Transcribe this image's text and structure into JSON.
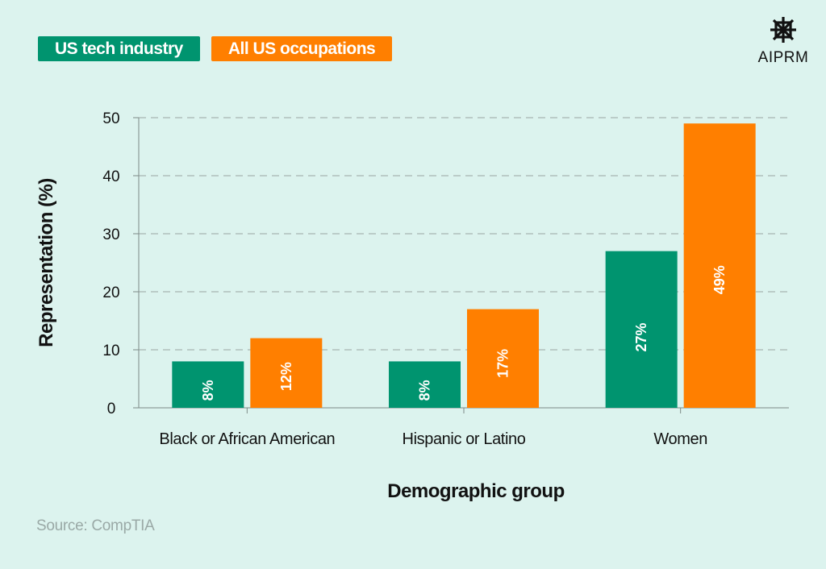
{
  "legend": {
    "series1": "US tech industry",
    "series2": "All US occupations"
  },
  "brand": {
    "name": "AIPRM",
    "icon": "aiprm-logo-icon"
  },
  "source": "Source: CompTIA",
  "colors": {
    "series1": "#00946f",
    "series2": "#ff7f00",
    "background": "#dcf3ee",
    "axis": "#7d8a87",
    "grid": "#9aa6a3"
  },
  "chart_data": {
    "type": "bar",
    "categories": [
      "Black or African American",
      "Hispanic or Latino",
      "Women"
    ],
    "series": [
      {
        "name": "US tech industry",
        "values": [
          8,
          8,
          27
        ],
        "labels": [
          "8%",
          "8%",
          "27%"
        ]
      },
      {
        "name": "All US occupations",
        "values": [
          12,
          17,
          49
        ],
        "labels": [
          "12%",
          "17%",
          "49%"
        ]
      }
    ],
    "xlabel": "Demographic group",
    "ylabel": "Representation (%)",
    "ylim": [
      0,
      50
    ],
    "yticks": [
      0,
      10,
      20,
      30,
      40,
      50
    ],
    "grid": "horizontal dashed",
    "legend_position": "top-left"
  }
}
